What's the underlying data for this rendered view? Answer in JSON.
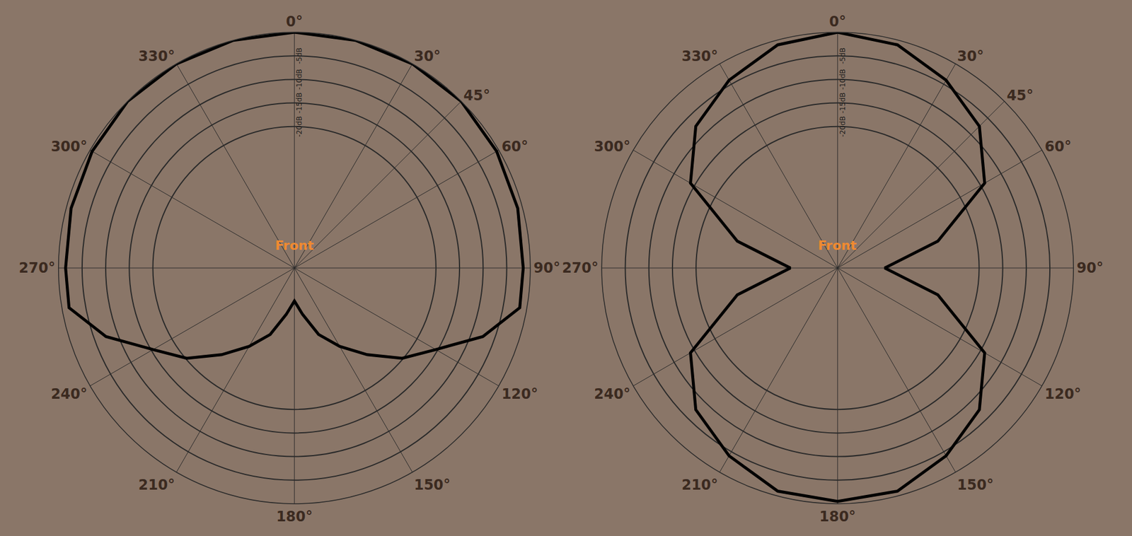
{
  "chart_data": [
    {
      "type": "polar",
      "annotation": "Front",
      "color": "#000000",
      "grid": true,
      "x": [
        0,
        15,
        30,
        45,
        60,
        75,
        90,
        100,
        110,
        120,
        130,
        140,
        150,
        160,
        170,
        180,
        190,
        200,
        210,
        220,
        230,
        240,
        250,
        260,
        270,
        285,
        300,
        315,
        330,
        345
      ],
      "values": [
        0,
        0,
        0,
        0,
        -0.5,
        -1,
        -1.5,
        -1.5,
        -7.5,
        -15.4,
        -20.2,
        -26,
        -30.8,
        -35,
        -40,
        -43,
        -40,
        -35,
        -30.8,
        -26,
        -20.2,
        -15.4,
        -7.5,
        -1.5,
        -1.5,
        -1,
        -0.5,
        0,
        0,
        0
      ],
      "xticks": [
        {
          "value": 0,
          "label": "0°"
        },
        {
          "value": 30,
          "label": "30°"
        },
        {
          "value": 45,
          "label": "45°"
        },
        {
          "value": 60,
          "label": "60°"
        },
        {
          "value": 90,
          "label": "90°"
        },
        {
          "value": 120,
          "label": "120°"
        },
        {
          "value": 150,
          "label": "150°"
        },
        {
          "value": 180,
          "label": "180°"
        },
        {
          "value": 210,
          "label": "210°"
        },
        {
          "value": 240,
          "label": "240°"
        },
        {
          "value": 270,
          "label": "270°"
        },
        {
          "value": 300,
          "label": "300°"
        },
        {
          "value": 330,
          "label": "330°"
        }
      ],
      "ylim": [
        -50,
        0
      ],
      "yticks": [
        {
          "value": -5,
          "label": "-5dB"
        },
        {
          "value": -10,
          "label": "-10dB"
        },
        {
          "value": -15,
          "label": "-15dB"
        },
        {
          "value": -20,
          "label": "-20dB"
        }
      ]
    },
    {
      "type": "polar",
      "annotation": "Front",
      "color": "#000000",
      "grid": true,
      "x": [
        0,
        15,
        30,
        45,
        60,
        75,
        90,
        105,
        120,
        135,
        150,
        165,
        180,
        195,
        210,
        225,
        240,
        255,
        270,
        285,
        300,
        315,
        330,
        345
      ],
      "values": [
        0,
        -1,
        -4,
        -7.5,
        -14,
        -28,
        -40,
        -28,
        -14,
        -7.5,
        -4,
        -1,
        -0.5,
        -1,
        -4,
        -7.5,
        -14,
        -28,
        -40,
        -28,
        -14,
        -7.5,
        -4,
        -1
      ],
      "xticks": [
        {
          "value": 0,
          "label": "0°"
        },
        {
          "value": 30,
          "label": "30°"
        },
        {
          "value": 45,
          "label": "45°"
        },
        {
          "value": 60,
          "label": "60°"
        },
        {
          "value": 90,
          "label": "90°"
        },
        {
          "value": 120,
          "label": "120°"
        },
        {
          "value": 150,
          "label": "150°"
        },
        {
          "value": 180,
          "label": "180°"
        },
        {
          "value": 210,
          "label": "210°"
        },
        {
          "value": 240,
          "label": "240°"
        },
        {
          "value": 270,
          "label": "270°"
        },
        {
          "value": 300,
          "label": "300°"
        },
        {
          "value": 330,
          "label": "330°"
        }
      ],
      "ylim": [
        -50,
        0
      ],
      "yticks": [
        {
          "value": -5,
          "label": "-5dB"
        },
        {
          "value": -10,
          "label": "-10dB"
        },
        {
          "value": -15,
          "label": "-15dB"
        },
        {
          "value": -20,
          "label": "-20dB"
        }
      ]
    }
  ]
}
